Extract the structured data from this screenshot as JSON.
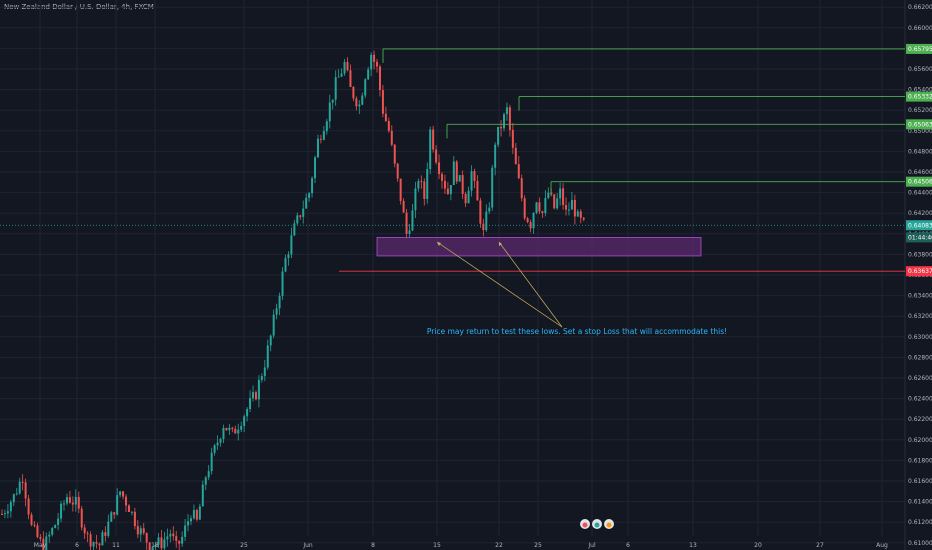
{
  "header": {
    "symbol_title": "New Zealand Dollar / U.S. Dollar, 4h, FXCM"
  },
  "colors": {
    "background": "#131722",
    "grid": "#1f2433",
    "up_candle": "#26a69a",
    "down_candle": "#ef5350",
    "resistance_line": "#4caf50",
    "support_zone_fill": "#5b2a6e",
    "support_zone_stroke": "#b04bd0",
    "stop_line": "#f23645",
    "annotation_text": "#29b6f6",
    "arrow": "#c9b458"
  },
  "chart_data": {
    "type": "candlestick",
    "yaxis_ticks": [
      "0.66200",
      "0.66000",
      "0.65800",
      "0.65600",
      "0.65400",
      "0.65200",
      "0.65000",
      "0.64800",
      "0.64600",
      "0.64400",
      "0.64200",
      "0.64000",
      "0.63800",
      "0.63600",
      "0.63400",
      "0.63200",
      "0.63000",
      "0.62800",
      "0.62600",
      "0.62400",
      "0.62200",
      "0.62000",
      "0.61800",
      "0.61600",
      "0.61400",
      "0.61200",
      "0.61000"
    ],
    "ylim": [
      0.6093,
      0.6627
    ],
    "xaxis_ticks": [
      "May",
      "6",
      "11",
      "18",
      "25",
      "Jun",
      "8",
      "15",
      "22",
      "25",
      "Jul",
      "6",
      "13",
      "20",
      "27",
      "Aug"
    ],
    "price_labels": [
      {
        "value": "0.65795",
        "price": 0.65795,
        "type": "resistance"
      },
      {
        "value": "0.65332",
        "price": 0.65332,
        "type": "resistance"
      },
      {
        "value": "0.65063",
        "price": 0.65063,
        "type": "resistance"
      },
      {
        "value": "0.64506",
        "price": 0.64506,
        "type": "resistance"
      },
      {
        "value": "0.64083",
        "price": 0.64083,
        "type": "last"
      },
      {
        "value": "01:44:40",
        "price": 0.63965,
        "type": "countdown"
      },
      {
        "value": "0.63637",
        "price": 0.63637,
        "type": "stop"
      }
    ],
    "horizontal_lines": [
      {
        "price": 0.65795,
        "type": "resistance"
      },
      {
        "price": 0.65332,
        "type": "resistance"
      },
      {
        "price": 0.65063,
        "type": "resistance"
      },
      {
        "price": 0.64506,
        "type": "resistance"
      },
      {
        "price": 0.64083,
        "type": "last-price"
      },
      {
        "price": 0.63637,
        "type": "stop-loss"
      }
    ],
    "support_zone": {
      "price_top": 0.63965,
      "price_bottom": 0.63785
    },
    "annotation": "Price may return to test these lows. Set a stop Loss that will accommodate this!",
    "waypoints": [
      [
        0,
        0.6128
      ],
      [
        4,
        0.6145
      ],
      [
        7,
        0.6165
      ],
      [
        10,
        0.6115
      ],
      [
        14,
        0.6095
      ],
      [
        18,
        0.6118
      ],
      [
        22,
        0.6145
      ],
      [
        25,
        0.6138
      ],
      [
        29,
        0.6105
      ],
      [
        33,
        0.6098
      ],
      [
        37,
        0.6125
      ],
      [
        40,
        0.615
      ],
      [
        43,
        0.6135
      ],
      [
        46,
        0.6115
      ],
      [
        50,
        0.6098
      ],
      [
        54,
        0.61
      ],
      [
        57,
        0.611
      ],
      [
        59,
        0.6095
      ],
      [
        61,
        0.6105
      ],
      [
        64,
        0.613
      ],
      [
        66,
        0.612
      ],
      [
        69,
        0.6165
      ],
      [
        72,
        0.619
      ],
      [
        75,
        0.6215
      ],
      [
        78,
        0.6205
      ],
      [
        82,
        0.6225
      ],
      [
        86,
        0.6245
      ],
      [
        89,
        0.6275
      ],
      [
        91,
        0.63
      ],
      [
        94,
        0.6345
      ],
      [
        96,
        0.6375
      ],
      [
        99,
        0.6405
      ],
      [
        101,
        0.642
      ],
      [
        104,
        0.644
      ],
      [
        107,
        0.649
      ],
      [
        110,
        0.6515
      ],
      [
        113,
        0.6545
      ],
      [
        116,
        0.6565
      ],
      [
        118,
        0.654
      ],
      [
        121,
        0.6525
      ],
      [
        123,
        0.6555
      ],
      [
        125,
        0.6575
      ],
      [
        127,
        0.656
      ],
      [
        129,
        0.652
      ],
      [
        131,
        0.65
      ],
      [
        133,
        0.6465
      ],
      [
        135,
        0.6435
      ],
      [
        137,
        0.64
      ],
      [
        139,
        0.642
      ],
      [
        141,
        0.6455
      ],
      [
        143,
        0.6435
      ],
      [
        145,
        0.65
      ],
      [
        147,
        0.6475
      ],
      [
        149,
        0.6455
      ],
      [
        151,
        0.644
      ],
      [
        153,
        0.6465
      ],
      [
        155,
        0.645
      ],
      [
        157,
        0.6435
      ],
      [
        159,
        0.646
      ],
      [
        161,
        0.643
      ],
      [
        163,
        0.64
      ],
      [
        165,
        0.643
      ],
      [
        167,
        0.649
      ],
      [
        169,
        0.6505
      ],
      [
        171,
        0.652
      ],
      [
        172,
        0.65
      ],
      [
        173,
        0.648
      ],
      [
        175,
        0.645
      ],
      [
        177,
        0.642
      ],
      [
        179,
        0.641
      ],
      [
        181,
        0.6435
      ],
      [
        183,
        0.642
      ],
      [
        185,
        0.644
      ],
      [
        187,
        0.6425
      ],
      [
        189,
        0.644
      ],
      [
        191,
        0.642
      ],
      [
        193,
        0.643
      ],
      [
        195,
        0.6415
      ],
      [
        197,
        0.6408
      ]
    ]
  }
}
